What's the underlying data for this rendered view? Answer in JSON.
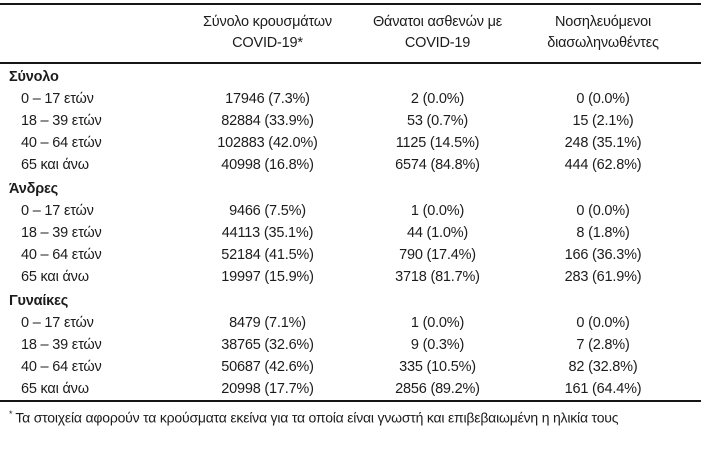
{
  "table": {
    "col_headers": [
      {
        "line1": "Σύνολο κρουσμάτων",
        "line2": "COVID-19*"
      },
      {
        "line1": "Θάνατοι ασθενών με",
        "line2": "COVID-19"
      },
      {
        "line1": "Νοσηλευόμενοι",
        "line2": "διασωληνωθέντες"
      }
    ],
    "sections": [
      {
        "label": "Σύνολο",
        "rows": [
          {
            "label": "0 – 17 ετών",
            "values": [
              "17946 (7.3%)",
              "2 (0.0%)",
              "0 (0.0%)"
            ]
          },
          {
            "label": "18 – 39 ετών",
            "values": [
              "82884 (33.9%)",
              "53 (0.7%)",
              "15 (2.1%)"
            ]
          },
          {
            "label": "40 – 64 ετών",
            "values": [
              "102883 (42.0%)",
              "1125 (14.5%)",
              "248 (35.1%)"
            ]
          },
          {
            "label": "65 και άνω",
            "values": [
              "40998 (16.8%)",
              "6574 (84.8%)",
              "444 (62.8%)"
            ]
          }
        ]
      },
      {
        "label": "Άνδρες",
        "rows": [
          {
            "label": "0 – 17 ετών",
            "values": [
              "9466 (7.5%)",
              "1 (0.0%)",
              "0 (0.0%)"
            ]
          },
          {
            "label": "18 – 39 ετών",
            "values": [
              "44113 (35.1%)",
              "44 (1.0%)",
              "8 (1.8%)"
            ]
          },
          {
            "label": "40 – 64 ετών",
            "values": [
              "52184 (41.5%)",
              "790 (17.4%)",
              "166 (36.3%)"
            ]
          },
          {
            "label": "65 και άνω",
            "values": [
              "19997 (15.9%)",
              "3718 (81.7%)",
              "283 (61.9%)"
            ]
          }
        ]
      },
      {
        "label": "Γυναίκες",
        "rows": [
          {
            "label": "0 – 17 ετών",
            "values": [
              "8479 (7.1%)",
              "1 (0.0%)",
              "0 (0.0%)"
            ]
          },
          {
            "label": "18 – 39 ετών",
            "values": [
              "38765 (32.6%)",
              "9 (0.3%)",
              "7 (2.8%)"
            ]
          },
          {
            "label": "40 – 64 ετών",
            "values": [
              "50687 (42.6%)",
              "335 (10.5%)",
              "82 (32.8%)"
            ]
          },
          {
            "label": "65 και άνω",
            "values": [
              "20998 (17.7%)",
              "2856 (89.2%)",
              "161 (64.4%)"
            ]
          }
        ]
      }
    ],
    "footnote_marker": "*",
    "footnote_text": "Τα στοιχεία αφορούν τα κρούσματα εκείνα για τα οποία είναι γνωστή και επιβεβαιωμένη η ηλικία τους"
  }
}
